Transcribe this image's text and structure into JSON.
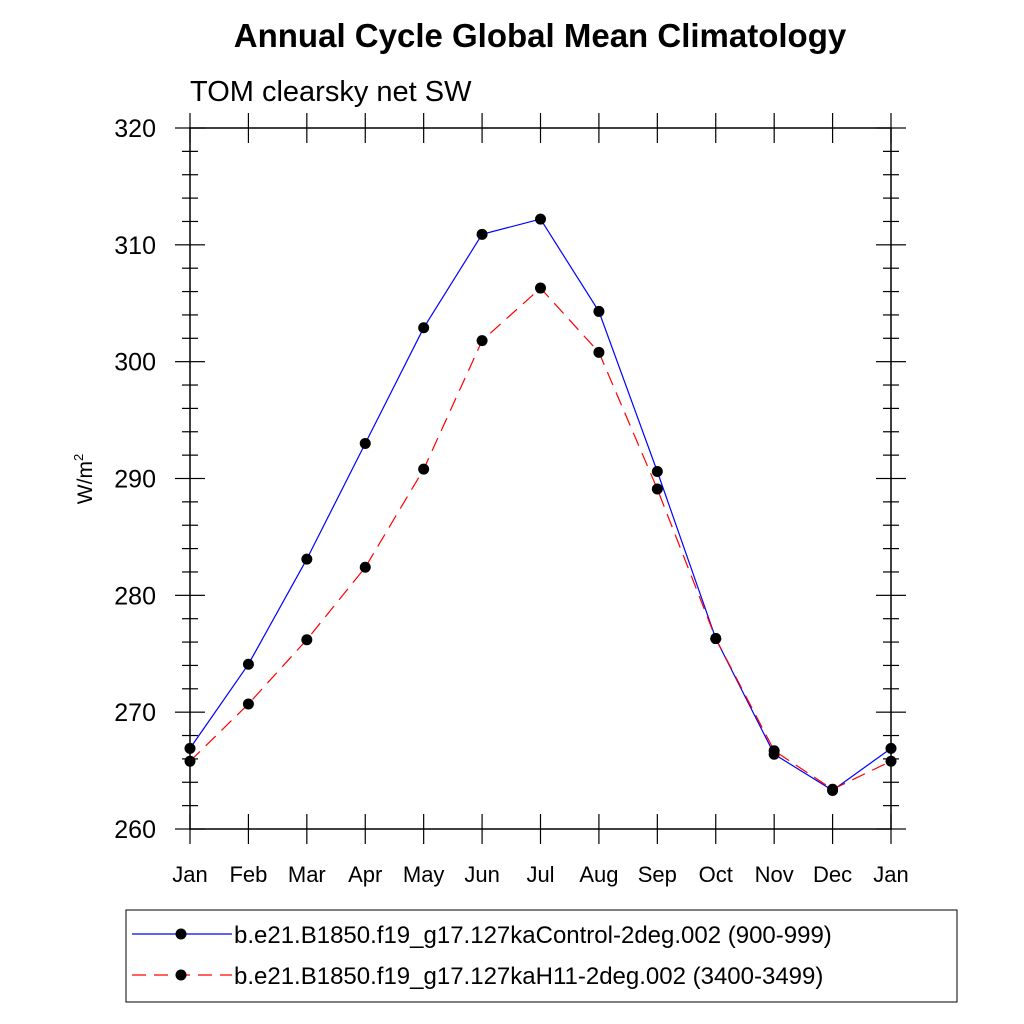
{
  "chart_data": {
    "type": "line",
    "title": "Annual Cycle Global Mean Climatology",
    "subtitle": "TOM clearsky net SW",
    "ylabel_base": "W/m",
    "ylabel_sup": "2",
    "xlabel": "",
    "categories": [
      "Jan",
      "Feb",
      "Mar",
      "Apr",
      "May",
      "Jun",
      "Jul",
      "Aug",
      "Sep",
      "Oct",
      "Nov",
      "Dec",
      "Jan"
    ],
    "ylim": [
      260,
      320
    ],
    "yticks": [
      "260",
      "270",
      "280",
      "290",
      "300",
      "310",
      "320"
    ],
    "grid": false,
    "legend_position": "bottom",
    "series": [
      {
        "name": "b.e21.B1850.f19_g17.127kaControl-2deg.002 (900-999)",
        "color": "#0000ff",
        "dash": "solid",
        "marker": "filled-circle",
        "values": [
          266.9,
          274.1,
          283.1,
          293.0,
          302.9,
          310.9,
          312.2,
          304.3,
          290.6,
          276.3,
          266.4,
          263.3,
          266.9
        ]
      },
      {
        "name": "b.e21.B1850.f19_g17.127kaH11-2deg.002 (3400-3499)",
        "color": "#ff0000",
        "dash": "dashed",
        "marker": "filled-circle",
        "values": [
          265.8,
          270.7,
          276.2,
          282.4,
          290.8,
          301.8,
          306.3,
          300.8,
          289.1,
          276.3,
          266.7,
          263.4,
          265.8
        ]
      }
    ]
  }
}
